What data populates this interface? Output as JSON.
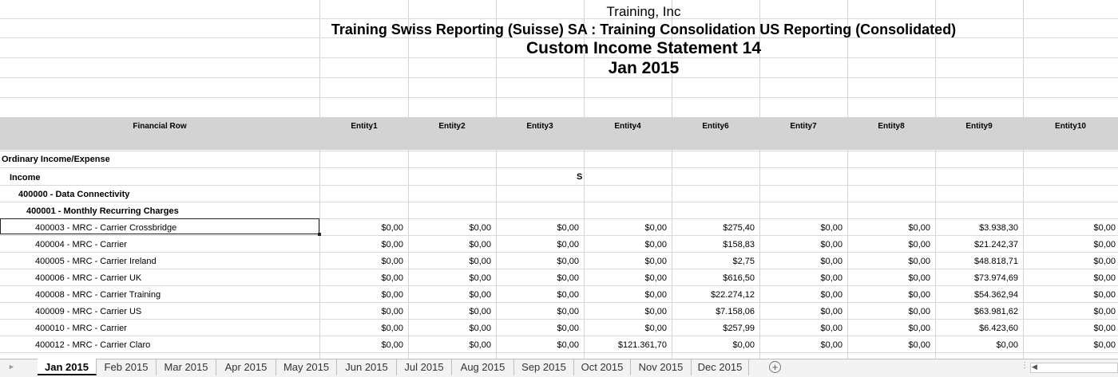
{
  "report": {
    "company": "Training, Inc",
    "subsidiary": "Training Swiss Reporting (Suisse) SA : Training Consolidation US Reporting (Consolidated)",
    "name": "Custom Income Statement 14",
    "period": "Jan 2015"
  },
  "columns": [
    "Financial Row",
    "Entity1",
    "Entity2",
    "Entity3",
    "Entity4",
    "Entity6",
    "Entity7",
    "Entity8",
    "Entity9",
    "Entity10"
  ],
  "sections": [
    {
      "label": "Ordinary Income/Expense"
    },
    {
      "label": "Income",
      "marker": "S"
    },
    {
      "label": "400000 - Data Connectivity"
    },
    {
      "label": "400001 - Monthly Recurring Charges"
    }
  ],
  "rows": [
    {
      "label": "400003 - MRC - Carrier Crossbridge",
      "values": [
        "$0,00",
        "$0,00",
        "$0,00",
        "$0,00",
        "$275,40",
        "$0,00",
        "$0,00",
        "$3.938,30",
        "$0,00"
      ]
    },
    {
      "label": "400004 - MRC - Carrier",
      "values": [
        "$0,00",
        "$0,00",
        "$0,00",
        "$0,00",
        "$158,83",
        "$0,00",
        "$0,00",
        "$21.242,37",
        "$0,00"
      ]
    },
    {
      "label": "400005 - MRC - Carrier Ireland",
      "values": [
        "$0,00",
        "$0,00",
        "$0,00",
        "$0,00",
        "$2,75",
        "$0,00",
        "$0,00",
        "$48.818,71",
        "$0,00"
      ]
    },
    {
      "label": "400006 - MRC - Carrier UK",
      "values": [
        "$0,00",
        "$0,00",
        "$0,00",
        "$0,00",
        "$616,50",
        "$0,00",
        "$0,00",
        "$73.974,69",
        "$0,00"
      ]
    },
    {
      "label": "400008 - MRC - Carrier Training",
      "values": [
        "$0,00",
        "$0,00",
        "$0,00",
        "$0,00",
        "$22.274,12",
        "$0,00",
        "$0,00",
        "$54.362,94",
        "$0,00"
      ]
    },
    {
      "label": "400009 - MRC - Carrier US",
      "values": [
        "$0,00",
        "$0,00",
        "$0,00",
        "$0,00",
        "$7.158,06",
        "$0,00",
        "$0,00",
        "$63.981,62",
        "$0,00"
      ]
    },
    {
      "label": "400010 - MRC - Carrier",
      "values": [
        "$0,00",
        "$0,00",
        "$0,00",
        "$0,00",
        "$257,99",
        "$0,00",
        "$0,00",
        "$6.423,60",
        "$0,00"
      ]
    },
    {
      "label": "400012 - MRC - Carrier Claro",
      "values": [
        "$0,00",
        "$0,00",
        "$0,00",
        "$121.361,70",
        "$0,00",
        "$0,00",
        "$0,00",
        "$0,00",
        "$0,00"
      ]
    }
  ],
  "sheet_tabs": [
    "Jan 2015",
    "Feb 2015",
    "Mar 2015",
    "Apr 2015",
    "May 2015",
    "Jun 2015",
    "Jul 2015",
    "Aug 2015",
    "Sep 2015",
    "Oct 2015",
    "Nov 2015",
    "Dec 2015"
  ],
  "active_tab": "Jan 2015",
  "add_sheet_label": "+",
  "colors": {
    "header_band": "#d3d3d3",
    "grid": "#d4d4d4",
    "selection": "#222222"
  }
}
